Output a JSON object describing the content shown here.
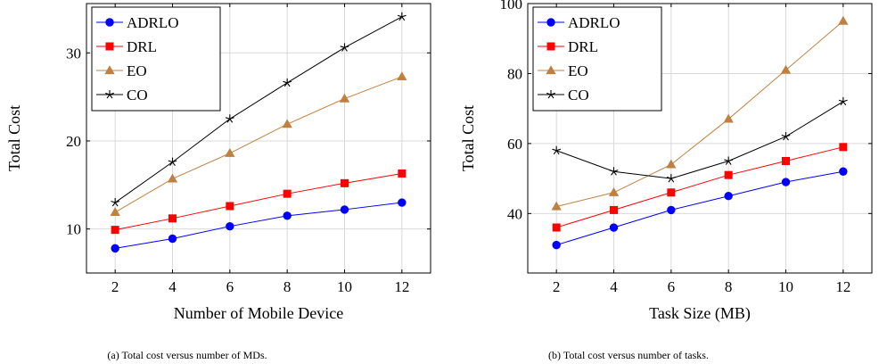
{
  "chart_data": [
    {
      "type": "line",
      "panel": "a",
      "xlabel": "Number of Mobile Device",
      "ylabel": "Total Cost",
      "x": [
        2,
        4,
        6,
        8,
        10,
        12
      ],
      "xlim": [
        1,
        13
      ],
      "ylim": [
        5,
        35.6
      ],
      "xticks": [
        2,
        4,
        6,
        8,
        10,
        12
      ],
      "yticks": [
        10,
        20,
        30
      ],
      "grid": true,
      "legend_position": "top-left",
      "caption": "(a) Total cost versus number of MDs.",
      "series": [
        {
          "name": "ADRLO",
          "color": "#0000ff",
          "marker": "circle",
          "values": [
            7.8,
            8.9,
            10.3,
            11.5,
            12.2,
            13.0
          ]
        },
        {
          "name": "DRL",
          "color": "#ff0000",
          "marker": "square",
          "values": [
            9.9,
            11.2,
            12.6,
            14.0,
            15.2,
            16.3
          ]
        },
        {
          "name": "EO",
          "color": "#c0803f",
          "marker": "triangle",
          "values": [
            11.9,
            15.7,
            18.6,
            21.9,
            24.8,
            27.3
          ]
        },
        {
          "name": "CO",
          "color": "#000000",
          "marker": "star",
          "values": [
            13.0,
            17.6,
            22.5,
            26.6,
            30.6,
            34.1
          ]
        }
      ]
    },
    {
      "type": "line",
      "panel": "b",
      "xlabel": "Task Size (MB)",
      "ylabel": "Total Cost",
      "x": [
        2,
        4,
        6,
        8,
        10,
        12
      ],
      "xlim": [
        1,
        13
      ],
      "ylim": [
        23,
        100
      ],
      "xticks": [
        2,
        4,
        6,
        8,
        10,
        12
      ],
      "yticks": [
        40,
        60,
        80,
        100
      ],
      "grid": true,
      "legend_position": "top-left",
      "caption": "(b) Total cost versus number of tasks.",
      "series": [
        {
          "name": "ADRLO",
          "color": "#0000ff",
          "marker": "circle",
          "values": [
            31,
            36,
            41,
            45,
            49,
            52
          ]
        },
        {
          "name": "DRL",
          "color": "#ff0000",
          "marker": "square",
          "values": [
            36,
            41,
            46,
            51,
            55,
            59
          ]
        },
        {
          "name": "EO",
          "color": "#c0803f",
          "marker": "triangle",
          "values": [
            42,
            46,
            54,
            67,
            81,
            95
          ]
        },
        {
          "name": "CO",
          "color": "#000000",
          "marker": "star",
          "values": [
            58,
            52,
            50,
            55,
            62,
            72
          ]
        }
      ]
    }
  ]
}
